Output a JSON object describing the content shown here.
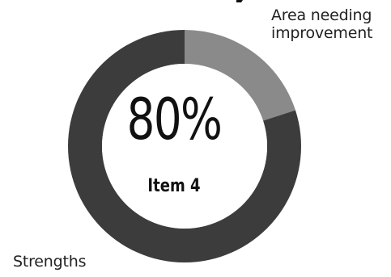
{
  "chart_data": {
    "type": "pie",
    "variant": "donut",
    "center_value": "80%",
    "center_label": "Item 4",
    "slices": [
      {
        "label": "Strengths",
        "value": 80,
        "color": "#3c3c3c"
      },
      {
        "label": "Area needing improvement",
        "value": 20,
        "color": "#8a8a8a"
      }
    ],
    "callouts": {
      "improvement": [
        "Area needing",
        "improvement"
      ],
      "strengths": "Strengths"
    }
  }
}
